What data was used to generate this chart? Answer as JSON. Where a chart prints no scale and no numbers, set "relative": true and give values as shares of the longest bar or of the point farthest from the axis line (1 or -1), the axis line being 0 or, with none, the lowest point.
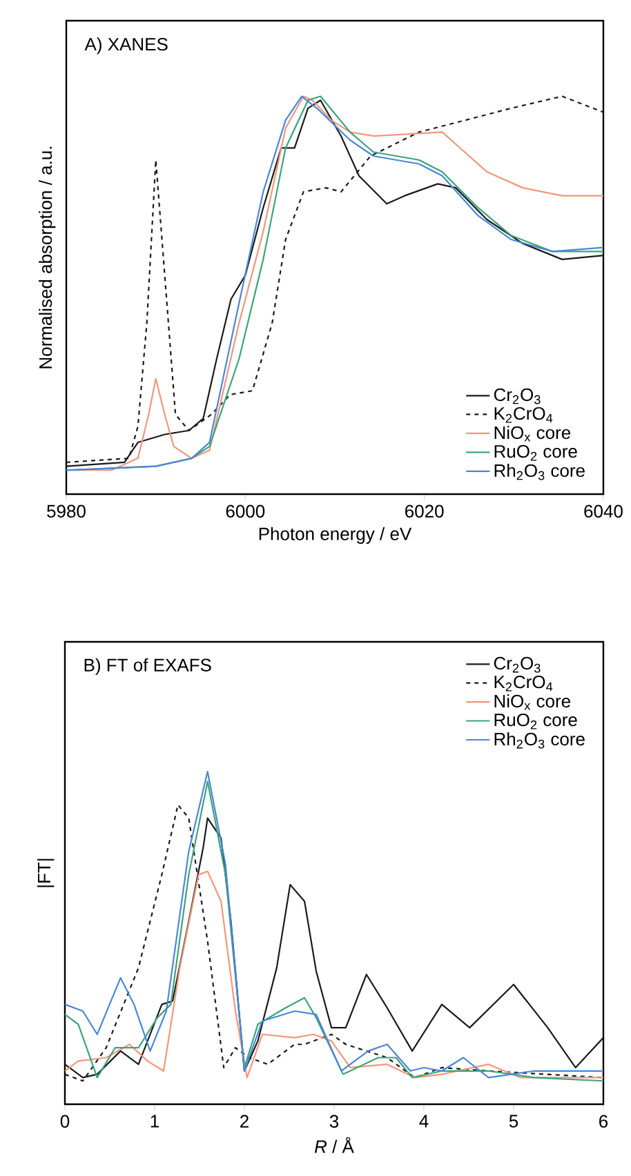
{
  "chart_data": [
    {
      "type": "line",
      "title": "A) XANES",
      "xlabel": "Photon energy / eV",
      "ylabel": "Normalised absorption / a.u.",
      "relative": true,
      "xlim": [
        5980,
        6040
      ],
      "xticks": [
        5980,
        6000,
        6020,
        6040
      ],
      "legend": "bottom right",
      "series": [
        {
          "name": "Cr$_{2}$O$_{3}$",
          "color": "#1a1a1a",
          "x": [
            5980,
            5986.5,
            5988,
            5991,
            5993.7,
            5995.3,
            5996.8,
            5998.4,
            6000,
            6002,
            6004,
            6005.5,
            6007,
            6008.4,
            6010.7,
            6012.7,
            6015.8,
            6017.8,
            6021.5,
            6023.5,
            6027,
            6031,
            6035.4,
            6040
          ],
          "values": [
            0.07,
            0.08,
            0.13,
            0.15,
            0.16,
            0.19,
            0.34,
            0.49,
            0.55,
            0.72,
            0.87,
            0.87,
            0.97,
            0.99,
            0.9,
            0.8,
            0.73,
            0.75,
            0.78,
            0.77,
            0.69,
            0.63,
            0.59,
            0.6
          ]
        },
        {
          "name": "K$_{2}$CrO$_{4}$",
          "color": "#1a1a1a",
          "line_style": "dashed",
          "x": [
            5980,
            5987,
            5988,
            5989,
            5990,
            5991,
            5992.2,
            5993.7,
            5996.2,
            5998.3,
            6000.8,
            6003,
            6004.5,
            6006.5,
            6009,
            6010.7,
            6014,
            6019.4,
            6024.6,
            6029.7,
            6035.4,
            6040
          ],
          "values": [
            0.08,
            0.09,
            0.17,
            0.43,
            0.84,
            0.55,
            0.2,
            0.16,
            0.2,
            0.25,
            0.26,
            0.43,
            0.64,
            0.76,
            0.77,
            0.76,
            0.85,
            0.91,
            0.94,
            0.97,
            1.0,
            0.96
          ]
        },
        {
          "name": "NiO$_{x}$ core",
          "color": "#f4967a",
          "x": [
            5980,
            5985,
            5988,
            5989.2,
            5990,
            5991,
            5992,
            5994,
            5996,
            5999.3,
            6002,
            6004.5,
            6006.5,
            6007.5,
            6009.6,
            6011.7,
            6014.4,
            6022,
            6024,
            6027,
            6031,
            6035.4,
            6040
          ],
          "values": [
            0.06,
            0.06,
            0.09,
            0.2,
            0.29,
            0.2,
            0.12,
            0.09,
            0.11,
            0.43,
            0.66,
            0.92,
            1.0,
            0.99,
            0.94,
            0.91,
            0.9,
            0.91,
            0.87,
            0.81,
            0.77,
            0.75,
            0.75
          ]
        },
        {
          "name": "RuO$_{2}$ core",
          "color": "#3aa57a",
          "x": [
            5980,
            5990,
            5994,
            5996,
            5999.3,
            6002,
            6004.5,
            6007,
            6008.4,
            6011.7,
            6014.3,
            6019.4,
            6022,
            6026,
            6029.7,
            6034.3,
            6040
          ],
          "values": [
            0.06,
            0.07,
            0.09,
            0.12,
            0.34,
            0.59,
            0.87,
            0.99,
            1.0,
            0.91,
            0.86,
            0.84,
            0.81,
            0.72,
            0.65,
            0.61,
            0.61
          ]
        },
        {
          "name": "Rh$_{2}$O$_{3}$ core",
          "color": "#4a86d8",
          "x": [
            5980,
            5990,
            5994,
            5996,
            5999.3,
            6002,
            6004.5,
            6006.3,
            6008,
            6011.7,
            6014.3,
            6019.4,
            6022,
            6026,
            6029.7,
            6034.3,
            6040
          ],
          "values": [
            0.06,
            0.07,
            0.09,
            0.13,
            0.48,
            0.76,
            0.94,
            1.0,
            0.97,
            0.89,
            0.85,
            0.83,
            0.8,
            0.7,
            0.64,
            0.61,
            0.62
          ]
        }
      ]
    },
    {
      "type": "line",
      "title": "B) FT of EXAFS",
      "xlabel": "*R* / Å",
      "ylabel": "|FT|",
      "relative": true,
      "xlim": [
        0,
        6
      ],
      "xticks": [
        0,
        1,
        2,
        3,
        4,
        5,
        6
      ],
      "legend": "top right",
      "series": [
        {
          "name": "Cr$_{2}$O$_{3}$",
          "color": "#1a1a1a",
          "x": [
            0,
            0.2,
            0.36,
            0.62,
            0.82,
            1.08,
            1.2,
            1.38,
            1.54,
            1.59,
            1.74,
            1.85,
            2,
            2.15,
            2.36,
            2.51,
            2.67,
            2.8,
            2.97,
            3.13,
            3.36,
            3.59,
            3.87,
            4.2,
            4.51,
            5,
            5.38,
            5.69,
            6
          ],
          "values": [
            0.12,
            0.08,
            0.09,
            0.16,
            0.12,
            0.3,
            0.31,
            0.55,
            0.77,
            0.86,
            0.8,
            0.55,
            0.1,
            0.19,
            0.41,
            0.66,
            0.61,
            0.4,
            0.23,
            0.23,
            0.39,
            0.29,
            0.16,
            0.3,
            0.23,
            0.36,
            0.23,
            0.11,
            0.2
          ]
        },
        {
          "name": "K$_{2}$CrO$_{4}$",
          "color": "#1a1a1a",
          "line_style": "dashed",
          "x": [
            0,
            0.2,
            0.46,
            0.82,
            1.08,
            1.26,
            1.38,
            1.59,
            1.77,
            1.9,
            2.05,
            2.26,
            2.56,
            2.67,
            2.97,
            3.13,
            3.59,
            3.9,
            4.2,
            4.72,
            6
          ],
          "values": [
            0.09,
            0.07,
            0.17,
            0.41,
            0.69,
            0.9,
            0.86,
            0.49,
            0.11,
            0.17,
            0.14,
            0.12,
            0.18,
            0.18,
            0.21,
            0.18,
            0.14,
            0.08,
            0.11,
            0.1,
            0.08
          ]
        },
        {
          "name": "NiO$_{x}$ core",
          "color": "#f4967a",
          "x": [
            0,
            0.15,
            0.46,
            0.72,
            0.92,
            1.1,
            1.28,
            1.49,
            1.59,
            1.74,
            1.9,
            2.03,
            2.2,
            2.56,
            2.77,
            2.97,
            3.18,
            3.59,
            3.9,
            4.2,
            4.72,
            5.08,
            6
          ],
          "values": [
            0.1,
            0.13,
            0.14,
            0.18,
            0.13,
            0.1,
            0.41,
            0.69,
            0.7,
            0.61,
            0.28,
            0.08,
            0.21,
            0.2,
            0.21,
            0.19,
            0.11,
            0.12,
            0.08,
            0.09,
            0.12,
            0.08,
            0.08
          ]
        },
        {
          "name": "RuO$_{2}$ core",
          "color": "#3aa57a",
          "x": [
            0,
            0.15,
            0.36,
            0.56,
            0.82,
            1.03,
            1.18,
            1.38,
            1.59,
            1.79,
            2,
            2.15,
            2.46,
            2.67,
            2.8,
            3.1,
            3.49,
            3.69,
            3.87,
            4.2,
            4.72,
            5.23,
            6
          ],
          "values": [
            0.27,
            0.24,
            0.08,
            0.17,
            0.17,
            0.26,
            0.3,
            0.69,
            0.97,
            0.69,
            0.11,
            0.24,
            0.29,
            0.32,
            0.26,
            0.09,
            0.14,
            0.14,
            0.08,
            0.1,
            0.1,
            0.08,
            0.07
          ]
        },
        {
          "name": "Rh$_{2}$O$_{3}$ core",
          "color": "#4a86d8",
          "x": [
            0,
            0.2,
            0.36,
            0.62,
            0.77,
            0.95,
            1.13,
            1.38,
            1.59,
            1.79,
            2,
            2.2,
            2.56,
            2.8,
            3.08,
            3.38,
            3.59,
            3.85,
            4,
            4.2,
            4.44,
            4.72,
            5.23,
            6
          ],
          "values": [
            0.3,
            0.28,
            0.21,
            0.38,
            0.3,
            0.16,
            0.28,
            0.76,
            1.0,
            0.72,
            0.1,
            0.25,
            0.28,
            0.27,
            0.1,
            0.16,
            0.18,
            0.1,
            0.11,
            0.1,
            0.14,
            0.08,
            0.1,
            0.1
          ]
        }
      ]
    }
  ]
}
